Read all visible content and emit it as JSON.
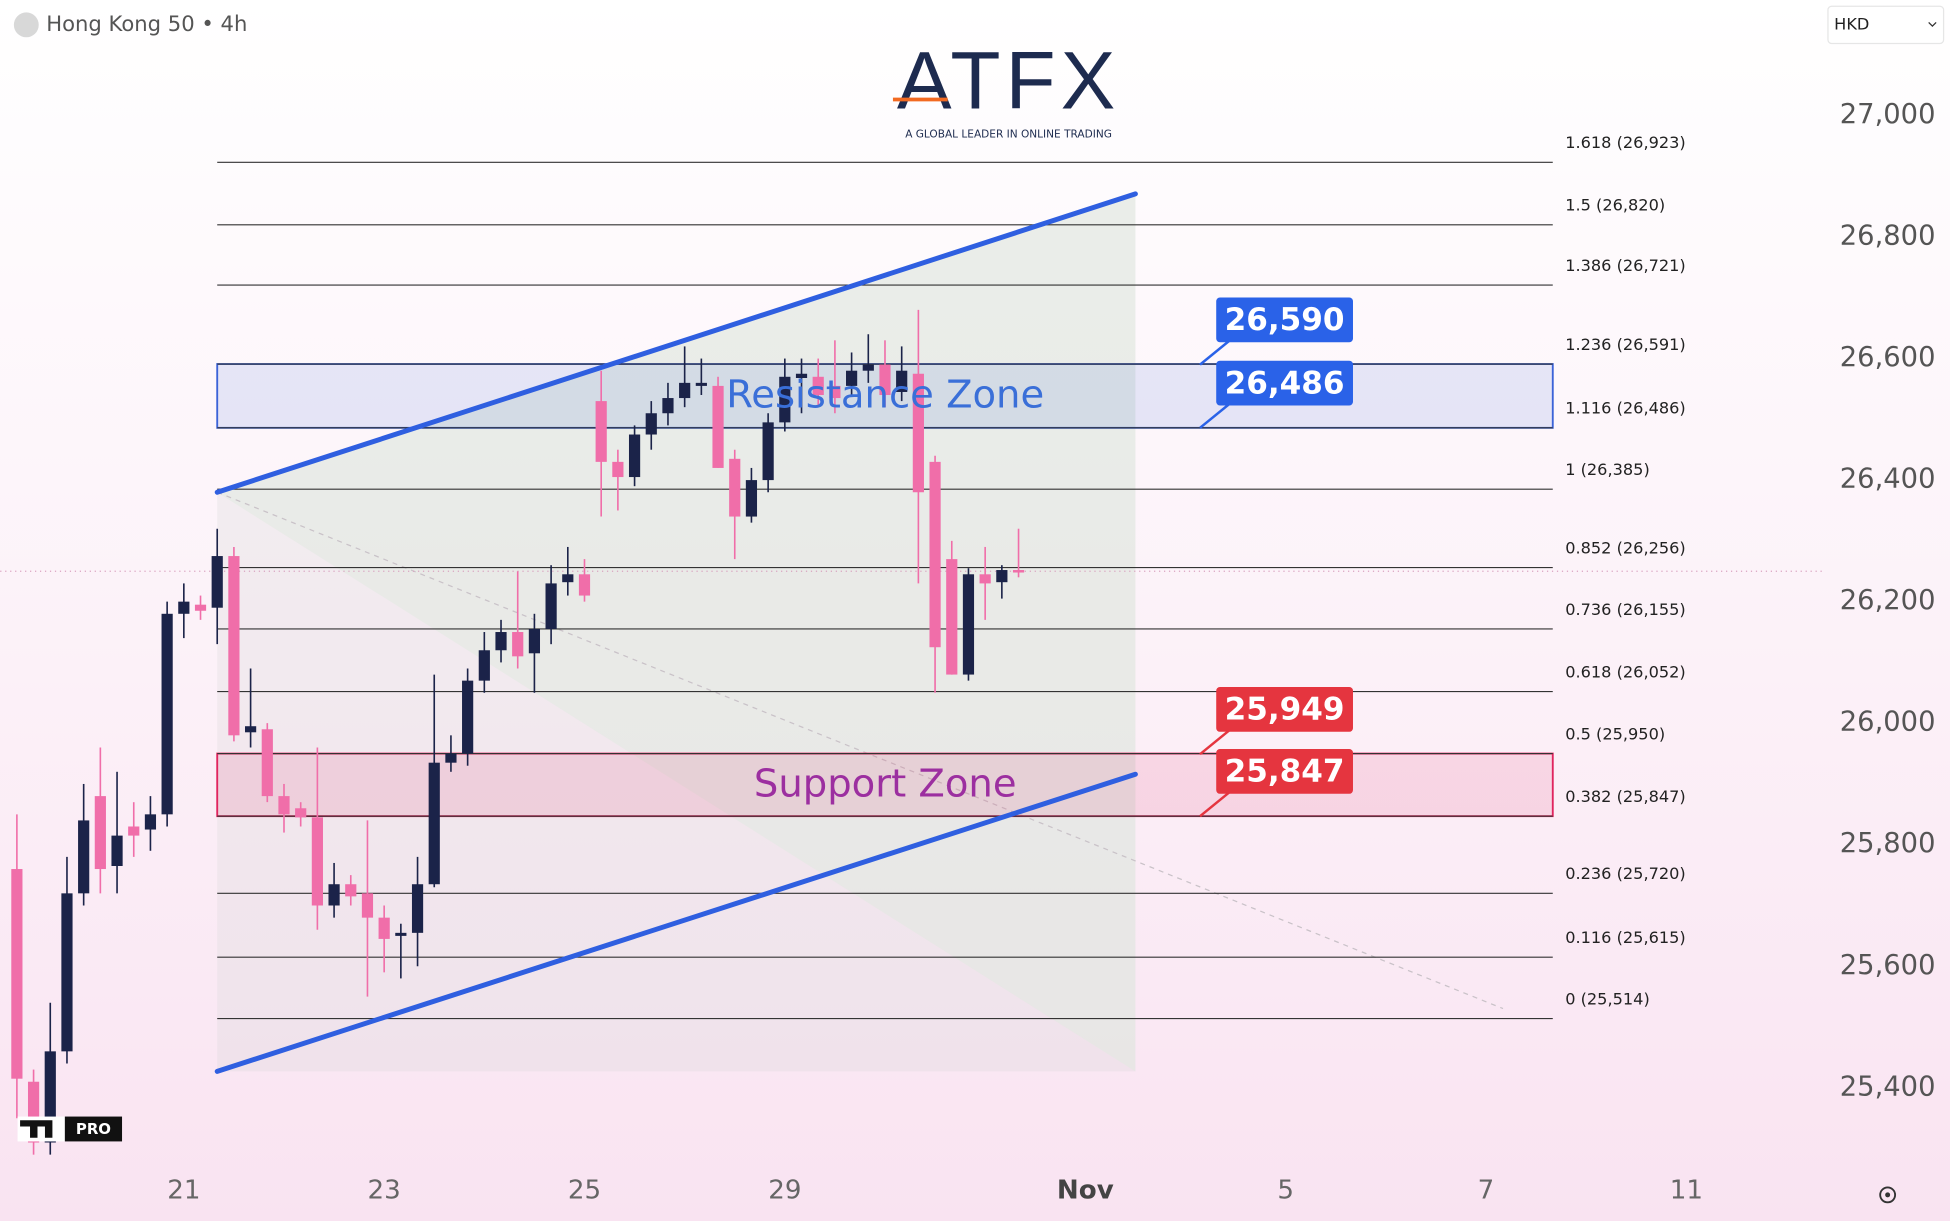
{
  "header": {
    "symbol": "Hong Kong 50 • 4h",
    "currency": "HKD"
  },
  "logo": {
    "name": "ATFX",
    "tagline": "A GLOBAL LEADER IN ONLINE TRADING"
  },
  "badge": "PRO",
  "chart_data": {
    "type": "candlestick",
    "up_color": "#1b2349",
    "down_color": "#f06ea9",
    "open": [
      25760,
      25410,
      25310,
      25460,
      25720,
      25880,
      25765,
      25830,
      25825,
      25850,
      26180,
      26195,
      26190,
      26275,
      25985,
      25990,
      25880,
      25860,
      25845,
      25700,
      25735,
      25720,
      25680,
      25650,
      25655,
      25735,
      25935,
      25950,
      26070,
      26120,
      26150,
      26115,
      26155,
      26232,
      26245,
      26530,
      26430,
      26405,
      26475,
      26510,
      26535,
      26555,
      26555,
      26435,
      26340,
      26400,
      26495,
      26568,
      26570,
      26555,
      26555,
      26580,
      26590,
      26545,
      26575,
      26430,
      26270,
      26080,
      26245,
      26232,
      26252
    ],
    "high": [
      25850,
      25430,
      25540,
      25780,
      25900,
      25960,
      25920,
      25870,
      25880,
      26200,
      26230,
      26210,
      26320,
      26290,
      26090,
      26000,
      25900,
      25870,
      25960,
      25770,
      25750,
      25840,
      25700,
      25670,
      25780,
      26080,
      25980,
      26090,
      26150,
      26170,
      26250,
      26180,
      26260,
      26290,
      26270,
      26580,
      26450,
      26490,
      26530,
      26560,
      26620,
      26600,
      26570,
      26450,
      26420,
      26510,
      26600,
      26600,
      26600,
      26630,
      26610,
      26640,
      26630,
      26620,
      26680,
      26440,
      26300,
      26255,
      26290,
      26260,
      26320
    ],
    "low": [
      25350,
      25290,
      25290,
      25440,
      25700,
      25720,
      25720,
      25780,
      25790,
      25830,
      26140,
      26170,
      26130,
      25970,
      25960,
      25870,
      25820,
      25830,
      25660,
      25680,
      25700,
      25550,
      25590,
      25580,
      25600,
      25730,
      25920,
      25930,
      26050,
      26100,
      26090,
      26050,
      26130,
      26210,
      26200,
      26340,
      26350,
      26390,
      26450,
      26490,
      26520,
      26540,
      26420,
      26270,
      26330,
      26380,
      26480,
      26510,
      26520,
      26510,
      26540,
      26560,
      26520,
      26530,
      26230,
      26050,
      26080,
      26070,
      26170,
      26205,
      26240
    ],
    "close": [
      25415,
      25310,
      25460,
      25720,
      25840,
      25760,
      25815,
      25815,
      25850,
      26180,
      26200,
      26185,
      26275,
      25980,
      25995,
      25880,
      25850,
      25845,
      25700,
      25735,
      25715,
      25680,
      25645,
      25655,
      25735,
      25935,
      25950,
      26070,
      26120,
      26150,
      26110,
      26155,
      26230,
      26245,
      26210,
      26430,
      26405,
      26475,
      26510,
      26535,
      26560,
      26560,
      26420,
      26340,
      26400,
      26495,
      26570,
      26575,
      26540,
      26535,
      26580,
      26590,
      26540,
      26580,
      26380,
      26125,
      26080,
      26245,
      26230,
      26252,
      26248
    ],
    "last_price": 26250,
    "xlim": [
      -1,
      108
    ],
    "xticks": [
      {
        "value": 10,
        "label": "21"
      },
      {
        "value": 22,
        "label": "23"
      },
      {
        "value": 34,
        "label": "25"
      },
      {
        "value": 46,
        "label": "29"
      },
      {
        "value": 64,
        "label": "Nov"
      },
      {
        "value": 76,
        "label": "5"
      },
      {
        "value": 88,
        "label": "7"
      },
      {
        "value": 100,
        "label": "11"
      }
    ],
    "ylim": [
      25277,
      27190
    ],
    "yticks": [
      {
        "value": 25400,
        "label": "25,400"
      },
      {
        "value": 25600,
        "label": "25,600"
      },
      {
        "value": 25800,
        "label": "25,800"
      },
      {
        "value": 26000,
        "label": "26,000"
      },
      {
        "value": 26200,
        "label": "26,200"
      },
      {
        "value": 26400,
        "label": "26,400"
      },
      {
        "value": 26600,
        "label": "26,600"
      },
      {
        "value": 26800,
        "label": "26,800"
      },
      {
        "value": 27000,
        "label": "27,000"
      }
    ],
    "fib_x": [
      12,
      92
    ],
    "fib_levels": [
      {
        "value": 26923,
        "label": "1.618 (26,923)"
      },
      {
        "value": 26820,
        "label": "1.5 (26,820)"
      },
      {
        "value": 26721,
        "label": "1.386 (26,721)"
      },
      {
        "value": 26591,
        "label": "1.236 (26,591)"
      },
      {
        "value": 26486,
        "label": "1.116 (26,486)"
      },
      {
        "value": 26385,
        "label": "1 (26,385)"
      },
      {
        "value": 26256,
        "label": "0.852 (26,256)"
      },
      {
        "value": 26155,
        "label": "0.736 (26,155)"
      },
      {
        "value": 26052,
        "label": "0.618 (26,052)"
      },
      {
        "value": 25950,
        "label": "0.5 (25,950)"
      },
      {
        "value": 25847,
        "label": "0.382 (25,847)"
      },
      {
        "value": 25720,
        "label": "0.236 (25,720)"
      },
      {
        "value": 25615,
        "label": "0.116 (25,615)"
      },
      {
        "value": 25514,
        "label": "0 (25,514)"
      }
    ],
    "zones": [
      {
        "name": "Resistance Zone",
        "low": 26486,
        "high": 26591,
        "color": "#3b63d8",
        "text_color": "#3a6fd8"
      },
      {
        "name": "Support Zone",
        "low": 25847,
        "high": 25950,
        "color": "#e0245e",
        "text_color": "#9c2fa0"
      }
    ],
    "price_tags": [
      {
        "value": 26590,
        "label": "26,590",
        "color": "#2a62e8"
      },
      {
        "value": 26486,
        "label": "26,486",
        "color": "#2a62e8"
      },
      {
        "value": 25949,
        "label": "25,949",
        "color": "#e5353f"
      },
      {
        "value": 25847,
        "label": "25,847",
        "color": "#e5353f"
      }
    ],
    "channel": {
      "x": [
        12,
        67
      ],
      "upper": [
        26380,
        26871
      ],
      "lower": [
        25427,
        25916
      ],
      "color": "#2f5fe0"
    }
  }
}
